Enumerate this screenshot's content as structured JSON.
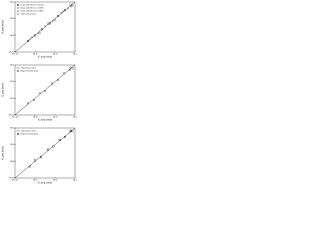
{
  "chart_data": [
    {
      "type": "scatter",
      "label": "(a)",
      "log": true,
      "xlabel": "K_exp (m/s)",
      "ylabel": "K_pre (m/s)",
      "xlim": [
        1e-10,
        0.0001
      ],
      "ylim": [
        1e-10,
        0.0001
      ],
      "xticks": [
        {
          "value": 1e-10,
          "label": "1E-10"
        },
        {
          "value": 1e-08,
          "label": "1E-8"
        },
        {
          "value": 1e-06,
          "label": "1E-6"
        },
        {
          "value": 0.0001,
          "label": "1E-4"
        }
      ],
      "yticks": [
        {
          "value": 1e-10,
          "label": "1E-10"
        },
        {
          "value": 1e-08,
          "label": "1E-8"
        },
        {
          "value": 1e-06,
          "label": "1E-6"
        },
        {
          "value": 0.0001,
          "label": "1E-4"
        }
      ],
      "series": [
        {
          "name": "Data with Errors of 10%",
          "color": "#111111",
          "marker": "square",
          "x": [
            2e-09,
            1e-08,
            5e-08,
            3e-07,
            2e-06,
            1e-05
          ],
          "values": [
            2.1e-09,
            9.5e-09,
            5.3e-08,
            2.8e-07,
            2.1e-06,
            1.05e-05
          ]
        },
        {
          "name": "Data with Errors of 20%",
          "color": "#e02020",
          "marker": "circle",
          "x": [
            3e-09,
            2e-08,
            1e-07,
            6e-07,
            4e-06,
            2e-05
          ],
          "values": [
            3.5e-09,
            1.7e-08,
            1.2e-07,
            5e-07,
            4.7e-06,
            1.7e-05
          ]
        },
        {
          "name": "Data with Errors of 30%",
          "color": "#2050e0",
          "marker": "triangle",
          "x": [
            5e-09,
            3e-08,
            2e-07,
            1e-06,
            6e-06,
            4e-05
          ],
          "values": [
            6.4e-09,
            2.2e-08,
            2.6e-07,
            7.5e-07,
            7.6e-06,
            3e-05
          ]
        },
        {
          "name": "Theoretical Line",
          "color": "#111111",
          "marker": "line",
          "x": [
            1e-10,
            0.0001
          ],
          "values": [
            1e-10,
            0.0001
          ]
        }
      ]
    },
    {
      "type": "scatter",
      "label": "(b)",
      "log": true,
      "xlabel": "K_exp (m/s)",
      "ylabel": "K_pre (m/s)",
      "xlim": [
        1e-10,
        0.0001
      ],
      "ylim": [
        1e-10,
        0.0001
      ],
      "xticks": [
        {
          "value": 1e-10,
          "label": "1E-10"
        },
        {
          "value": 1e-08,
          "label": "1E-8"
        },
        {
          "value": 1e-06,
          "label": "1E-6"
        },
        {
          "value": 0.0001,
          "label": "1E-4"
        }
      ],
      "yticks": [
        {
          "value": 1e-10,
          "label": "1E-10"
        },
        {
          "value": 1e-08,
          "label": "1E-8"
        },
        {
          "value": 1e-06,
          "label": "1E-6"
        },
        {
          "value": 0.0001,
          "label": "1E-4"
        }
      ],
      "series": [
        {
          "name": "Theoretical Line",
          "color": "#111111",
          "marker": "line",
          "x": [
            1e-10,
            0.0001
          ],
          "values": [
            1e-10,
            0.0001
          ]
        },
        {
          "name": "Experimental data",
          "color": "#111111",
          "marker": "circle",
          "x": [
            2e-09,
            8e-09,
            3e-08,
            1e-07,
            5e-07,
            2e-06,
            8e-06,
            3e-05
          ],
          "values": [
            2.5e-09,
            6e-09,
            4e-08,
            8e-08,
            6e-07,
            1.6e-06,
            1e-05,
            2.5e-05
          ]
        }
      ]
    },
    {
      "type": "scatter",
      "label": "(c)",
      "log": true,
      "xlabel": "K_exp (m/s)",
      "ylabel": "K_pre (m/s)",
      "xlim": [
        1e-10,
        0.0001
      ],
      "ylim": [
        1e-10,
        0.0001
      ],
      "xticks": [
        {
          "value": 1e-10,
          "label": "1E-10"
        },
        {
          "value": 1e-08,
          "label": "1E-8"
        },
        {
          "value": 1e-06,
          "label": "1E-6"
        },
        {
          "value": 0.0001,
          "label": "1E-4"
        }
      ],
      "yticks": [
        {
          "value": 1e-10,
          "label": "1E-10"
        },
        {
          "value": 1e-08,
          "label": "1E-8"
        },
        {
          "value": 1e-06,
          "label": "1E-6"
        },
        {
          "value": 0.0001,
          "label": "1E-4"
        }
      ],
      "series": [
        {
          "name": "Theoretical Line",
          "color": "#111111",
          "marker": "line",
          "x": [
            1e-10,
            0.0001
          ],
          "values": [
            1e-10,
            0.0001
          ]
        },
        {
          "name": "Experimental data",
          "color": "#111111",
          "marker": "square",
          "x": [
            3e-09,
            1e-08,
            4e-08,
            2e-07,
            7e-07,
            3e-06,
            1e-05,
            4e-05
          ],
          "values": [
            2.4e-09,
            1.3e-08,
            3.2e-08,
            2.5e-07,
            6e-07,
            3.6e-06,
            8.5e-06,
            4.6e-05
          ]
        }
      ]
    }
  ]
}
